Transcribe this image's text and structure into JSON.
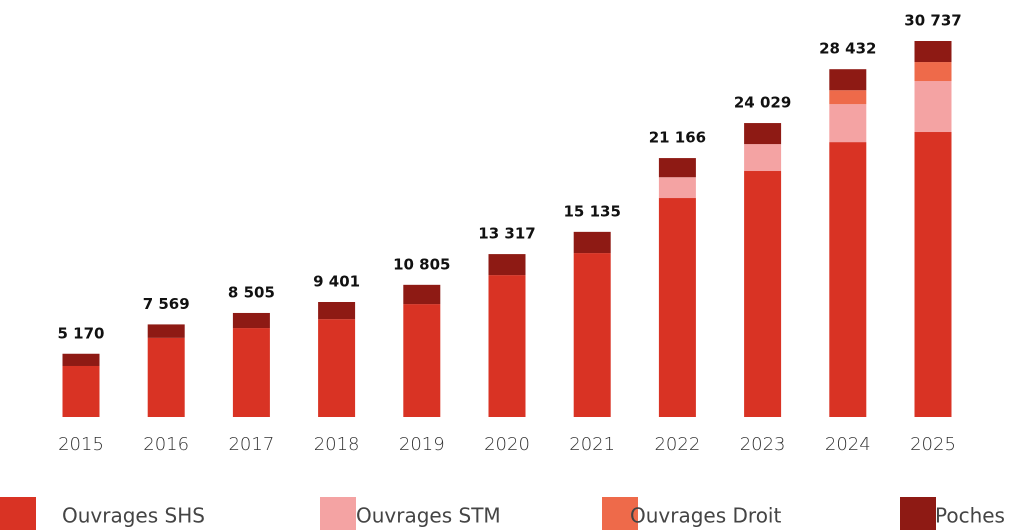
{
  "chart_data": {
    "type": "bar",
    "stacked": true,
    "categories": [
      "2015",
      "2016",
      "2017",
      "2018",
      "2019",
      "2020",
      "2021",
      "2022",
      "2023",
      "2024",
      "2025"
    ],
    "series": [
      {
        "name": "Ouvrages SHS",
        "color": "#d93324",
        "values": [
          4170,
          6470,
          7270,
          8000,
          9230,
          11600,
          13400,
          17900,
          20109,
          22472,
          23297
        ]
      },
      {
        "name": "Ouvrages STM",
        "color": "#f4a3a3",
        "values": [
          0,
          0,
          0,
          0,
          0,
          0,
          0,
          1700,
          2200,
          3100,
          4170
        ]
      },
      {
        "name": "Ouvrages Droit",
        "color": "#ee6a4a",
        "values": [
          0,
          0,
          0,
          0,
          0,
          0,
          0,
          0,
          0,
          1140,
          1550
        ]
      },
      {
        "name": "Poches",
        "color": "#8e1a14",
        "values": [
          1000,
          1099,
          1235,
          1401,
          1575,
          1717,
          1735,
          1566,
          1720,
          1720,
          1720
        ]
      }
    ],
    "totals": [
      5170,
      7569,
      8505,
      9401,
      10805,
      13317,
      15135,
      21166,
      24029,
      28432,
      30737
    ],
    "total_labels": [
      "5 170",
      "7 569",
      "8 505",
      "9 401",
      "10 805",
      "13 317",
      "15 135",
      "21 166",
      "24 029",
      "28 432",
      "30 737"
    ]
  }
}
